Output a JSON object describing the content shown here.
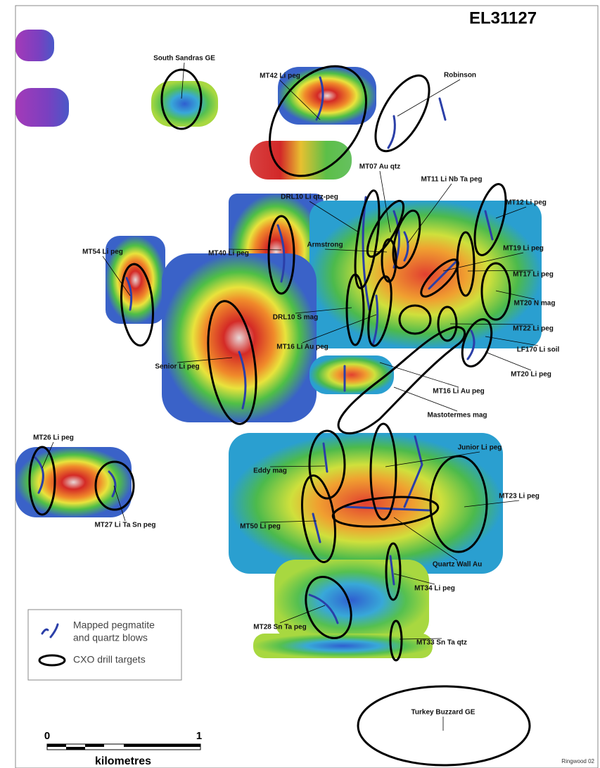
{
  "title": "EL31127",
  "labels": [
    "South Sandras GE",
    "MT42 Li peg",
    "Robinson",
    "MT07 Au qtz",
    "MT11 Li Nb Ta peg",
    "DRL10 Li qtz-peg",
    "MT12 Li peg",
    "Armstrong",
    "MT40 Li peg",
    "MT54 Li peg",
    "MT19 Li peg",
    "MT17 Li peg",
    "MT20 N mag",
    "DRL10 S mag",
    "MT22 Li peg",
    "MT16 Li Au peg",
    "LF170 Li soil",
    "Senior Li peg",
    "MT20 Li peg",
    "MT16 Li Au peg",
    "Mastotermes mag",
    "MT26 Li peg",
    "Junior Li peg",
    "Eddy mag",
    "MT23 Li peg",
    "MT27 Li Ta Sn peg",
    "MT50 Li peg",
    "Quartz Wall Au",
    "MT34 Li peg",
    "MT28 Sn Ta peg",
    "MT33 Sn Ta qtz",
    "Turkey Buzzard GE"
  ],
  "legend": {
    "pegmatite": [
      "Mapped pegmatite",
      "and quartz blows"
    ],
    "drill_targets": "CXO drill targets"
  },
  "scale": {
    "ticks": [
      0,
      1
    ],
    "unit": "kilometres"
  },
  "credit": "Ringwood 02"
}
